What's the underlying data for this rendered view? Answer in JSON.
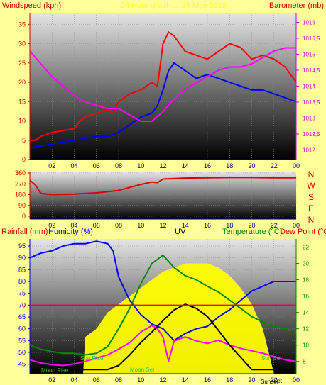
{
  "panel1": {
    "left_label": "Windspeed (kph)",
    "center_label": "24 Hour graph ... 24 May 2018",
    "right_label": "Barometer (mb)",
    "colors": {
      "left_label": "#cc0000",
      "center_label": "#ffff33",
      "right_label": "#cc0000"
    }
  },
  "panel3": {
    "labels": [
      {
        "text": "Rainfall (mm)",
        "color": "#cc0000"
      },
      {
        "text": "Humidity (%)",
        "color": "#0000cc"
      },
      {
        "text": "UV",
        "color": "#000000"
      },
      {
        "text": "Temperature (°C)",
        "color": "#008800"
      },
      {
        "text": "Dew Point (°C",
        "color": "#cc0000"
      }
    ],
    "events": [
      "Moon Rise",
      "Sun Rise",
      "Moon Set",
      "Sun Set",
      "Sunset",
      "Set"
    ]
  },
  "chart_data": [
    {
      "type": "line",
      "x_ticks": [
        "02",
        "04",
        "06",
        "08",
        "10",
        "12",
        "14",
        "16",
        "18",
        "20",
        "22",
        "00"
      ],
      "y_left": {
        "label": "Windspeed (kph)",
        "range": [
          0,
          38
        ],
        "ticks": [
          0,
          5,
          10,
          15,
          20,
          25,
          30,
          35
        ]
      },
      "y_right": {
        "label": "Barometer (mb)",
        "range": [
          1011.7,
          1016.3
        ],
        "ticks": [
          "1012",
          "1012,5",
          "1013",
          "1013,5",
          "1014",
          "1014,5",
          "1015",
          "1015,5",
          "1016"
        ]
      },
      "series": [
        {
          "axis": "left",
          "color": "#ff0000",
          "x": [
            0,
            0.5,
            1,
            2,
            3,
            4,
            4.5,
            5,
            6,
            7,
            7.5,
            8,
            9,
            10,
            10.5,
            11,
            11.5,
            12,
            12.5,
            13,
            14,
            15,
            16,
            17,
            18,
            19,
            20,
            21,
            22,
            23,
            24
          ],
          "y": [
            5,
            5,
            6,
            7,
            7.5,
            8,
            10,
            11,
            12,
            13,
            12,
            15,
            17,
            18,
            19,
            20,
            19,
            30,
            33,
            32,
            28,
            27,
            26,
            28,
            30,
            29,
            26,
            27,
            26,
            24,
            20
          ]
        },
        {
          "axis": "left",
          "color": "#0000ff",
          "x": [
            0,
            1,
            2,
            3,
            4,
            5,
            6,
            7,
            8,
            9,
            10,
            11,
            11.5,
            12,
            12.5,
            13,
            14,
            15,
            16,
            17,
            18,
            19,
            20,
            21,
            22,
            23,
            24
          ],
          "y": [
            3,
            3.5,
            4,
            4.5,
            5,
            5.5,
            6,
            6,
            7,
            9,
            11,
            12,
            14,
            18,
            23,
            25,
            23,
            21,
            22,
            21,
            20,
            19,
            18,
            18,
            17,
            16,
            15
          ]
        },
        {
          "axis": "right",
          "color": "#ff00ff",
          "x": [
            0,
            1,
            2,
            3,
            4,
            5,
            6,
            7,
            8,
            9,
            10,
            11,
            12,
            13,
            14,
            15,
            16,
            17,
            18,
            19,
            20,
            21,
            22,
            23,
            24
          ],
          "y": [
            1015.1,
            1014.7,
            1014.3,
            1014,
            1013.7,
            1013.5,
            1013.4,
            1013.3,
            1013.3,
            1013.1,
            1012.9,
            1012.9,
            1013.2,
            1013.6,
            1013.9,
            1014.1,
            1014.3,
            1014.5,
            1014.6,
            1014.6,
            1014.7,
            1014.9,
            1015.1,
            1015.2,
            1015.2
          ]
        }
      ]
    },
    {
      "type": "line",
      "x_ticks": [
        "02",
        "04",
        "06",
        "08",
        "10",
        "12",
        "14",
        "16",
        "18",
        "20",
        "22",
        "00"
      ],
      "y_left": {
        "range": [
          0,
          360
        ],
        "ticks": [
          0,
          90,
          180,
          270,
          360
        ]
      },
      "y_right": {
        "ticks": [
          "N",
          "W",
          "S",
          "E",
          "N"
        ]
      },
      "series": [
        {
          "color": "#dd0000",
          "x": [
            0,
            0.5,
            1,
            2,
            4,
            6,
            8,
            9,
            10,
            11,
            11.5,
            12,
            14,
            16,
            18,
            20,
            22,
            24
          ],
          "y": [
            300,
            260,
            190,
            180,
            185,
            195,
            215,
            240,
            265,
            285,
            280,
            310,
            318,
            320,
            322,
            322,
            320,
            320
          ]
        }
      ]
    },
    {
      "type": "line",
      "x_ticks": [
        "02",
        "04",
        "06",
        "08",
        "10",
        "12",
        "14",
        "16",
        "18",
        "20",
        "22",
        "00"
      ],
      "y_left": {
        "range": [
          41,
          98
        ],
        "ticks": [
          45,
          50,
          55,
          60,
          65,
          70,
          75,
          80,
          85,
          90,
          95
        ]
      },
      "y_right": {
        "range": [
          6.5,
          23
        ],
        "ticks": [
          8,
          10,
          12,
          14,
          16,
          18,
          20,
          22
        ]
      },
      "rainfall_marker": {
        "label": "0"
      },
      "series": [
        {
          "name": "Humidity (%)",
          "axis": "left",
          "color": "#0000ff",
          "x": [
            0,
            1,
            2,
            3,
            4,
            5,
            6,
            7,
            7.5,
            8,
            9,
            10,
            11,
            12,
            13,
            14,
            15,
            16,
            17,
            18,
            19,
            20,
            21,
            22,
            23,
            24
          ],
          "y": [
            90,
            92,
            93,
            95,
            96,
            96,
            97,
            96,
            93,
            82,
            72,
            66,
            62,
            60,
            55,
            58,
            60,
            61,
            65,
            68,
            72,
            76,
            78,
            80,
            80,
            80
          ]
        },
        {
          "name": "Temperature (°C)",
          "axis": "right",
          "color": "#008800",
          "x": [
            0,
            1,
            2,
            3,
            4,
            5,
            6,
            7,
            8,
            9,
            10,
            11,
            12,
            13,
            14,
            15,
            16,
            17,
            18,
            19,
            20,
            21,
            22,
            23,
            24
          ],
          "y": [
            10,
            9.5,
            9.2,
            9,
            9,
            8.8,
            9,
            9.8,
            12,
            14.5,
            17.5,
            20,
            21,
            19.5,
            18.5,
            18,
            17.2,
            16.5,
            15.5,
            14.5,
            13.5,
            12.8,
            12.3,
            12,
            11.8
          ]
        },
        {
          "name": "Dew Point (°C",
          "axis": "right",
          "color": "#ff00ff",
          "x": [
            0,
            1,
            2,
            3,
            4,
            5,
            6,
            7,
            8,
            9,
            10,
            11,
            11.5,
            12,
            12.5,
            13,
            14,
            15,
            16,
            17,
            18,
            19,
            20,
            21,
            22,
            23,
            24
          ],
          "y": [
            8.2,
            7.8,
            7.6,
            7.5,
            7.7,
            8,
            8.4,
            8.8,
            9.5,
            10.3,
            11.6,
            12.4,
            12,
            11,
            8,
            10.5,
            11,
            10.5,
            10.2,
            10.6,
            10,
            9.6,
            9.3,
            9,
            8.6,
            8.2,
            8
          ]
        },
        {
          "name": "UV",
          "axis": "right",
          "color": "#000000",
          "x": [
            0,
            5,
            7,
            8,
            9,
            10,
            11,
            12,
            13,
            14,
            15,
            16,
            17,
            18,
            19,
            20,
            24
          ],
          "y": [
            7,
            7,
            7,
            7.5,
            8.8,
            10.3,
            11.6,
            13,
            14.3,
            15,
            14.5,
            13.5,
            11.8,
            10,
            8.5,
            7,
            7
          ]
        },
        {
          "name": "Solar",
          "axis": "right",
          "color": "#ffff00",
          "x": [
            0,
            4.8,
            5,
            6,
            7,
            8,
            9,
            10,
            11,
            12,
            13,
            14,
            15,
            16,
            17,
            18,
            19,
            20,
            21,
            22,
            24
          ],
          "y": [
            6.5,
            6.5,
            11,
            12,
            14,
            15,
            16,
            17,
            18,
            19,
            19.5,
            20,
            20,
            20,
            19.5,
            18.5,
            17,
            15,
            12,
            6.5,
            6.5
          ]
        }
      ]
    }
  ]
}
